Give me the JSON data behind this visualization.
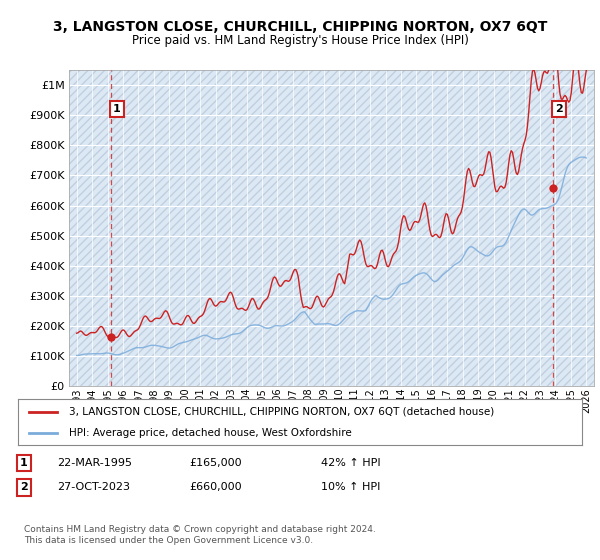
{
  "title": "3, LANGSTON CLOSE, CHURCHILL, CHIPPING NORTON, OX7 6QT",
  "subtitle": "Price paid vs. HM Land Registry's House Price Index (HPI)",
  "ylim": [
    0,
    1050000
  ],
  "yticks": [
    0,
    100000,
    200000,
    300000,
    400000,
    500000,
    600000,
    700000,
    800000,
    900000,
    1000000
  ],
  "ytick_labels": [
    "£0",
    "£100K",
    "£200K",
    "£300K",
    "£400K",
    "£500K",
    "£600K",
    "£700K",
    "£800K",
    "£900K",
    "£1M"
  ],
  "background_color": "#ffffff",
  "plot_bg_color": "#dce9f5",
  "hatch_color": "#c0cfe0",
  "grid_color": "#ffffff",
  "sale1_x": 2.2,
  "sale1_value": 165000,
  "sale2_x": 30.83,
  "sale2_value": 660000,
  "line1_color": "#cc2222",
  "line2_color": "#7aabdb",
  "sale_marker_color": "#cc2222",
  "sale_vline_color": "#cc2222",
  "legend_line1": "3, LANGSTON CLOSE, CHURCHILL, CHIPPING NORTON, OX7 6QT (detached house)",
  "legend_line2": "HPI: Average price, detached house, West Oxfordshire",
  "footer": "Contains HM Land Registry data © Crown copyright and database right 2024.\nThis data is licensed under the Open Government Licence v3.0.",
  "xtick_years": [
    "1993",
    "1994",
    "1995",
    "1996",
    "1997",
    "1998",
    "1999",
    "2000",
    "2001",
    "2002",
    "2003",
    "2004",
    "2005",
    "2006",
    "2007",
    "2008",
    "2009",
    "2010",
    "2011",
    "2012",
    "2013",
    "2014",
    "2015",
    "2016",
    "2017",
    "2018",
    "2019",
    "2020",
    "2021",
    "2022",
    "2023",
    "2024",
    "2025",
    "2026"
  ]
}
